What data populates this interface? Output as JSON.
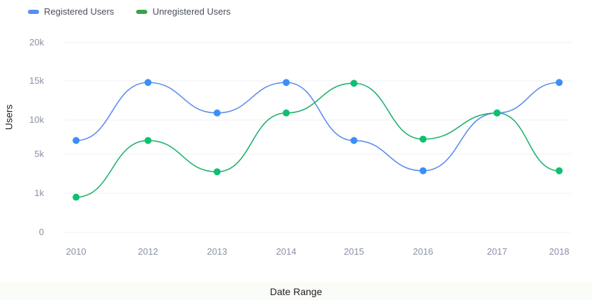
{
  "legend": {
    "items": [
      {
        "label": "Registered Users",
        "color": "#5b8def"
      },
      {
        "label": "Unregistered Users",
        "color": "#3aa24a"
      }
    ]
  },
  "chart_data": {
    "type": "line",
    "xlabel": "Date Range",
    "ylabel": "Users",
    "categories": [
      "2010",
      "2012",
      "2013",
      "2014",
      "2015",
      "2016",
      "2017",
      "2018"
    ],
    "ytick_labels": [
      "0",
      "1k",
      "5k",
      "10k",
      "15k",
      "20k"
    ],
    "grid": true,
    "legend_position": "top-left",
    "series": [
      {
        "name": "Registered Users",
        "line_color": "#5b8def",
        "point_color": "#3b8ff6",
        "values": [
          7000,
          14800,
          10900,
          14800,
          7000,
          3300,
          10900,
          14800
        ]
      },
      {
        "name": "Unregistered Users",
        "line_color": "#21b26b",
        "point_color": "#0fbf72",
        "values": [
          900,
          7000,
          3200,
          10900,
          14700,
          7200,
          10900,
          3300
        ]
      }
    ]
  }
}
